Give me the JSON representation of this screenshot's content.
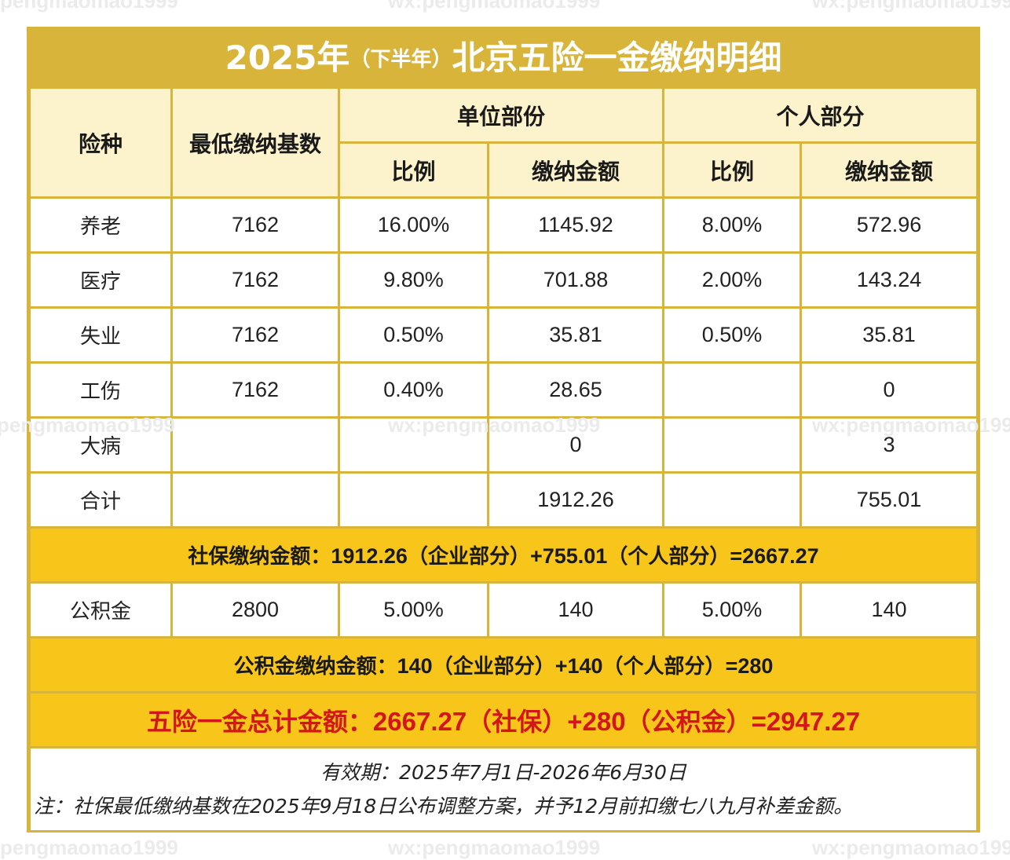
{
  "watermark": {
    "text_top": "pengmaomao1999",
    "text": "wx:pengmaomao1999"
  },
  "title": {
    "main_a": "2025年",
    "sub": "（下半年）",
    "main_b": "北京五险一金缴纳明细"
  },
  "headers": {
    "type": "险种",
    "base": "最低缴纳基数",
    "company": "单位部份",
    "personal": "个人部分",
    "ratio": "比例",
    "amount": "缴纳金额"
  },
  "rows": [
    {
      "type": "养老",
      "base": "7162",
      "c_ratio": "16.00%",
      "c_amount": "1145.92",
      "p_ratio": "8.00%",
      "p_amount": "572.96"
    },
    {
      "type": "医疗",
      "base": "7162",
      "c_ratio": "9.80%",
      "c_amount": "701.88",
      "p_ratio": "2.00%",
      "p_amount": "143.24"
    },
    {
      "type": "失业",
      "base": "7162",
      "c_ratio": "0.50%",
      "c_amount": "35.81",
      "p_ratio": "0.50%",
      "p_amount": "35.81"
    },
    {
      "type": "工伤",
      "base": "7162",
      "c_ratio": "0.40%",
      "c_amount": "28.65",
      "p_ratio": "",
      "p_amount": "0"
    },
    {
      "type": "大病",
      "base": "",
      "c_ratio": "",
      "c_amount": "0",
      "p_ratio": "",
      "p_amount": "3"
    },
    {
      "type": "合计",
      "base": "",
      "c_ratio": "",
      "c_amount": "1912.26",
      "p_ratio": "",
      "p_amount": "755.01"
    }
  ],
  "social_summary": {
    "label": "社保缴纳金额：",
    "v1": "1912.26",
    "t1": "（企业部分）",
    "v2": "+755.01",
    "t2": "（个人部分）",
    "v3": "=2667.27"
  },
  "fund_row": {
    "type": "公积金",
    "base": "2800",
    "c_ratio": "5.00%",
    "c_amount": "140",
    "p_ratio": "5.00%",
    "p_amount": "140"
  },
  "fund_summary": {
    "label": "公积金缴纳金额：",
    "v1": "140",
    "t1": "（企业部分）",
    "v2": "+140",
    "t2": "（个人部分）",
    "v3": "=280"
  },
  "grand_total": {
    "label": "五险一金总计金额：",
    "v1": "2667.27",
    "t1": "（社保）",
    "v2": "+280",
    "t2": "（公积金）",
    "v3": "=2947.27"
  },
  "note": {
    "validity": "有效期：2025年7月1日-2026年6月30日",
    "remark": "注：社保最低缴纳基数在2025年9月18日公布调整方案，并予12月前扣缴七八九月补差金额。"
  },
  "colors": {
    "gold": "#d8b53a",
    "header_bg": "#fcf3cc",
    "bar_yellow": "#f8c61a",
    "total_red": "#d3161a"
  }
}
